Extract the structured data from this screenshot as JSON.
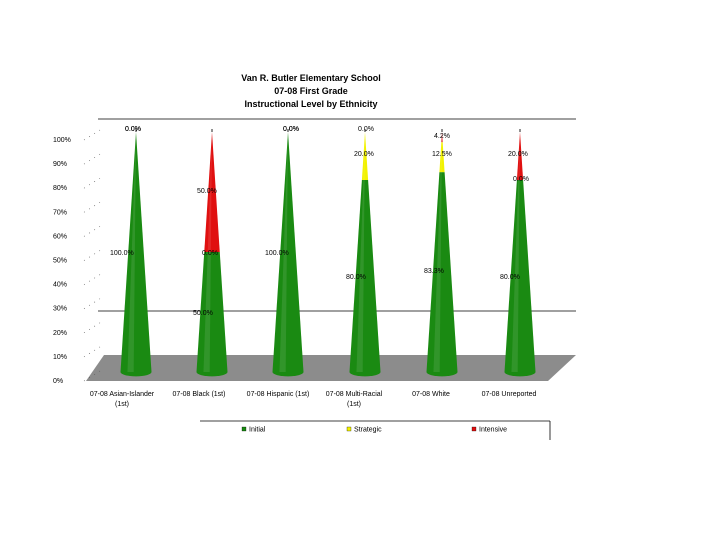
{
  "chart_data": {
    "type": "bar",
    "subtype": "stacked-100-percent-cone-3d",
    "title": [
      "Van R. Butler Elementary School",
      "07-08 First Grade",
      "Instructional Level by Ethnicity"
    ],
    "categories": [
      [
        "07-08 Asian-Islander",
        "(1st)"
      ],
      [
        "07-08 Black (1st)"
      ],
      [
        "07-08 Hispanic (1st)"
      ],
      [
        "07-08 Multi-Racial",
        "(1st)"
      ],
      [
        "07-08 White"
      ],
      [
        "07-08 Unreported"
      ]
    ],
    "series": [
      {
        "name": "Initial",
        "color": "#1a8a12",
        "values": [
          100.0,
          50.0,
          100.0,
          80.0,
          83.3,
          80.0
        ],
        "labels": [
          "100.0%",
          "50.0%",
          "100.0%",
          "80.0%",
          "83.3%",
          "80.0%"
        ]
      },
      {
        "name": "Strategic",
        "color": "#f2f200",
        "values": [
          0.0,
          0.0,
          0.0,
          20.0,
          12.5,
          0.0
        ],
        "labels": [
          "0.0%",
          "0.0%",
          "0.0%",
          "20.0%",
          "12.5%",
          "0.0%"
        ]
      },
      {
        "name": "Intensive",
        "color": "#e01010",
        "values": [
          0.0,
          50.0,
          0.0,
          0.0,
          4.2,
          20.0
        ],
        "labels": [
          "0.0%",
          "50.0%",
          "0.0%",
          "0.0%",
          "4.2%",
          "20.0%"
        ]
      }
    ],
    "ytick_labels": [
      "0%",
      "10%",
      "20%",
      "30%",
      "40%",
      "50%",
      "60%",
      "70%",
      "80%",
      "90%",
      "100%"
    ],
    "ylim": [
      0,
      100
    ],
    "legend_position": "bottom",
    "floor_color": "#8c8c8c"
  }
}
